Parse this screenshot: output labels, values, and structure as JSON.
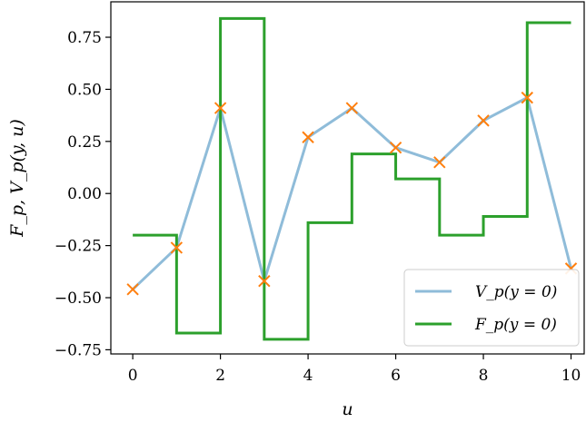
{
  "chart_data": {
    "type": "line",
    "xlabel": "u",
    "ylabel": "F_p, V_p(y, u)",
    "xlim": [
      -0.5,
      10.3
    ],
    "ylim": [
      -0.77,
      0.92
    ],
    "xticks": [
      0,
      2,
      4,
      6,
      8,
      10
    ],
    "xtick_labels": [
      "0",
      "2",
      "4",
      "6",
      "8",
      "10"
    ],
    "yticks": [
      -0.75,
      -0.5,
      -0.25,
      0.0,
      0.25,
      0.5,
      0.75
    ],
    "ytick_labels": [
      "−0.75",
      "−0.50",
      "−0.25",
      "0.00",
      "0.25",
      "0.50",
      "0.75"
    ],
    "legend_position": "lower-right",
    "series": [
      {
        "name": "V_p(y = 0)",
        "legend_label": "V_p(y = 0)",
        "kind": "line-with-markers",
        "color": "#8fbcd9",
        "marker_color": "#ff7f0e",
        "marker": "x",
        "x": [
          0,
          1,
          2,
          3,
          4,
          5,
          6,
          7,
          8,
          9,
          10
        ],
        "y": [
          -0.46,
          -0.26,
          0.41,
          -0.42,
          0.27,
          0.41,
          0.22,
          0.15,
          0.35,
          0.46,
          -0.36
        ]
      },
      {
        "name": "F_p(y = 0)",
        "legend_label": "F_p(y = 0)",
        "kind": "step",
        "color": "#2ca02c",
        "x": [
          0,
          1,
          2,
          3,
          4,
          5,
          6,
          7,
          8,
          9,
          10
        ],
        "y": [
          -0.2,
          -0.67,
          0.84,
          -0.7,
          -0.14,
          0.19,
          0.07,
          -0.2,
          -0.11,
          0.82,
          0.82
        ]
      }
    ]
  }
}
